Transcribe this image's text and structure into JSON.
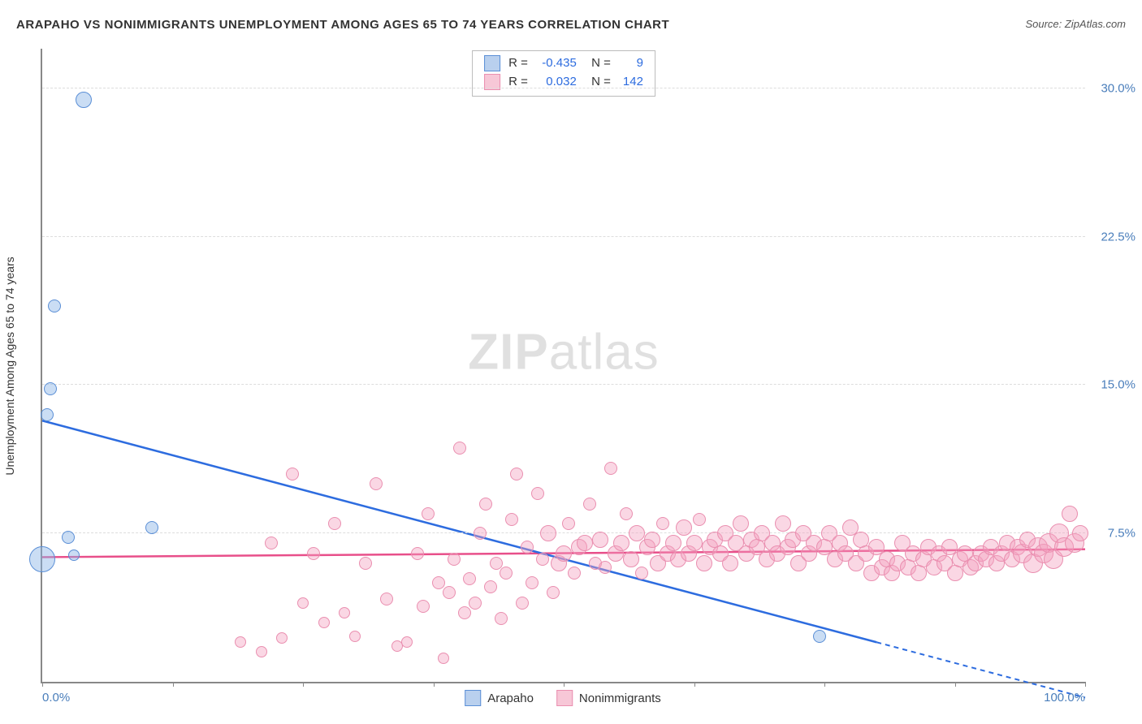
{
  "title": "ARAPAHO VS NONIMMIGRANTS UNEMPLOYMENT AMONG AGES 65 TO 74 YEARS CORRELATION CHART",
  "source": "Source: ZipAtlas.com",
  "watermark_bold": "ZIP",
  "watermark_rest": "atlas",
  "y_axis_title": "Unemployment Among Ages 65 to 74 years",
  "chart": {
    "type": "scatter",
    "xlim": [
      0,
      100
    ],
    "ylim": [
      0,
      32
    ],
    "x_ticks": [
      0,
      50,
      100
    ],
    "x_tick_labels": [
      "0.0%",
      "",
      "100.0%"
    ],
    "x_minor_ticks": [
      12.5,
      25,
      37.5,
      62.5,
      75,
      87.5
    ],
    "y_ticks": [
      7.5,
      15.0,
      22.5,
      30.0
    ],
    "y_tick_labels": [
      "7.5%",
      "15.0%",
      "22.5%",
      "30.0%"
    ],
    "grid_color": "#dddddd",
    "axis_color": "#888888",
    "background_color": "#ffffff"
  },
  "series": {
    "arapaho": {
      "label": "Arapaho",
      "fill": "rgba(138,180,230,0.45)",
      "stroke": "#5b8fd6",
      "swatch_fill": "#b9d0ee",
      "swatch_border": "#5b8fd6",
      "line_color": "#2d6cdf",
      "R": "-0.435",
      "N": "9",
      "trend": {
        "x1": 0,
        "y1": 13.2,
        "x2_solid": 80,
        "y2_solid": 2.0,
        "x2": 100,
        "y2": -0.8
      },
      "points": [
        {
          "x": 0.0,
          "y": 6.2,
          "r": 16
        },
        {
          "x": 0.5,
          "y": 13.5,
          "r": 8
        },
        {
          "x": 0.8,
          "y": 14.8,
          "r": 8
        },
        {
          "x": 1.2,
          "y": 19.0,
          "r": 8
        },
        {
          "x": 4.0,
          "y": 29.4,
          "r": 10
        },
        {
          "x": 2.5,
          "y": 7.3,
          "r": 8
        },
        {
          "x": 3.0,
          "y": 6.4,
          "r": 7
        },
        {
          "x": 10.5,
          "y": 7.8,
          "r": 8
        },
        {
          "x": 74.5,
          "y": 2.3,
          "r": 8
        }
      ]
    },
    "nonimmigrants": {
      "label": "Nonimmigrants",
      "fill": "rgba(244,160,190,0.42)",
      "stroke": "#ea8fb0",
      "swatch_fill": "#f7c7d7",
      "swatch_border": "#ea8fb0",
      "line_color": "#e84f8a",
      "R": "0.032",
      "N": "142",
      "trend": {
        "x1": 0,
        "y1": 6.3,
        "x2_solid": 100,
        "y2_solid": 6.7,
        "x2": 100,
        "y2": 6.7
      },
      "points": [
        {
          "x": 19,
          "y": 2.0,
          "r": 7
        },
        {
          "x": 21,
          "y": 1.5,
          "r": 7
        },
        {
          "x": 22,
          "y": 7.0,
          "r": 8
        },
        {
          "x": 23,
          "y": 2.2,
          "r": 7
        },
        {
          "x": 24,
          "y": 10.5,
          "r": 8
        },
        {
          "x": 25,
          "y": 4.0,
          "r": 7
        },
        {
          "x": 26,
          "y": 6.5,
          "r": 8
        },
        {
          "x": 27,
          "y": 3.0,
          "r": 7
        },
        {
          "x": 28,
          "y": 8.0,
          "r": 8
        },
        {
          "x": 29,
          "y": 3.5,
          "r": 7
        },
        {
          "x": 30,
          "y": 2.3,
          "r": 7
        },
        {
          "x": 31,
          "y": 6.0,
          "r": 8
        },
        {
          "x": 32,
          "y": 10.0,
          "r": 8
        },
        {
          "x": 33,
          "y": 4.2,
          "r": 8
        },
        {
          "x": 34,
          "y": 1.8,
          "r": 7
        },
        {
          "x": 35,
          "y": 2.0,
          "r": 7
        },
        {
          "x": 36,
          "y": 6.5,
          "r": 8
        },
        {
          "x": 36.5,
          "y": 3.8,
          "r": 8
        },
        {
          "x": 37,
          "y": 8.5,
          "r": 8
        },
        {
          "x": 38,
          "y": 5.0,
          "r": 8
        },
        {
          "x": 38.5,
          "y": 1.2,
          "r": 7
        },
        {
          "x": 39,
          "y": 4.5,
          "r": 8
        },
        {
          "x": 39.5,
          "y": 6.2,
          "r": 8
        },
        {
          "x": 40,
          "y": 11.8,
          "r": 8
        },
        {
          "x": 40.5,
          "y": 3.5,
          "r": 8
        },
        {
          "x": 41,
          "y": 5.2,
          "r": 8
        },
        {
          "x": 41.5,
          "y": 4.0,
          "r": 8
        },
        {
          "x": 42,
          "y": 7.5,
          "r": 8
        },
        {
          "x": 42.5,
          "y": 9.0,
          "r": 8
        },
        {
          "x": 43,
          "y": 4.8,
          "r": 8
        },
        {
          "x": 43.5,
          "y": 6.0,
          "r": 8
        },
        {
          "x": 44,
          "y": 3.2,
          "r": 8
        },
        {
          "x": 44.5,
          "y": 5.5,
          "r": 8
        },
        {
          "x": 45,
          "y": 8.2,
          "r": 8
        },
        {
          "x": 45.5,
          "y": 10.5,
          "r": 8
        },
        {
          "x": 46,
          "y": 4.0,
          "r": 8
        },
        {
          "x": 46.5,
          "y": 6.8,
          "r": 8
        },
        {
          "x": 47,
          "y": 5.0,
          "r": 8
        },
        {
          "x": 47.5,
          "y": 9.5,
          "r": 8
        },
        {
          "x": 48,
          "y": 6.2,
          "r": 8
        },
        {
          "x": 48.5,
          "y": 7.5,
          "r": 10
        },
        {
          "x": 49,
          "y": 4.5,
          "r": 8
        },
        {
          "x": 49.5,
          "y": 6.0,
          "r": 10
        },
        {
          "x": 50,
          "y": 6.5,
          "r": 10
        },
        {
          "x": 50.5,
          "y": 8.0,
          "r": 8
        },
        {
          "x": 51,
          "y": 5.5,
          "r": 8
        },
        {
          "x": 51.5,
          "y": 6.8,
          "r": 10
        },
        {
          "x": 52,
          "y": 7.0,
          "r": 10
        },
        {
          "x": 52.5,
          "y": 9.0,
          "r": 8
        },
        {
          "x": 53,
          "y": 6.0,
          "r": 8
        },
        {
          "x": 53.5,
          "y": 7.2,
          "r": 10
        },
        {
          "x": 54,
          "y": 5.8,
          "r": 8
        },
        {
          "x": 54.5,
          "y": 10.8,
          "r": 8
        },
        {
          "x": 55,
          "y": 6.5,
          "r": 10
        },
        {
          "x": 55.5,
          "y": 7.0,
          "r": 10
        },
        {
          "x": 56,
          "y": 8.5,
          "r": 8
        },
        {
          "x": 56.5,
          "y": 6.2,
          "r": 10
        },
        {
          "x": 57,
          "y": 7.5,
          "r": 10
        },
        {
          "x": 57.5,
          "y": 5.5,
          "r": 8
        },
        {
          "x": 58,
          "y": 6.8,
          "r": 10
        },
        {
          "x": 58.5,
          "y": 7.2,
          "r": 10
        },
        {
          "x": 59,
          "y": 6.0,
          "r": 10
        },
        {
          "x": 59.5,
          "y": 8.0,
          "r": 8
        },
        {
          "x": 60,
          "y": 6.5,
          "r": 10
        },
        {
          "x": 60.5,
          "y": 7.0,
          "r": 10
        },
        {
          "x": 61,
          "y": 6.2,
          "r": 10
        },
        {
          "x": 61.5,
          "y": 7.8,
          "r": 10
        },
        {
          "x": 62,
          "y": 6.5,
          "r": 10
        },
        {
          "x": 62.5,
          "y": 7.0,
          "r": 10
        },
        {
          "x": 63,
          "y": 8.2,
          "r": 8
        },
        {
          "x": 63.5,
          "y": 6.0,
          "r": 10
        },
        {
          "x": 64,
          "y": 6.8,
          "r": 10
        },
        {
          "x": 64.5,
          "y": 7.2,
          "r": 10
        },
        {
          "x": 65,
          "y": 6.5,
          "r": 10
        },
        {
          "x": 65.5,
          "y": 7.5,
          "r": 10
        },
        {
          "x": 66,
          "y": 6.0,
          "r": 10
        },
        {
          "x": 66.5,
          "y": 7.0,
          "r": 10
        },
        {
          "x": 67,
          "y": 8.0,
          "r": 10
        },
        {
          "x": 67.5,
          "y": 6.5,
          "r": 10
        },
        {
          "x": 68,
          "y": 7.2,
          "r": 10
        },
        {
          "x": 68.5,
          "y": 6.8,
          "r": 10
        },
        {
          "x": 69,
          "y": 7.5,
          "r": 10
        },
        {
          "x": 69.5,
          "y": 6.2,
          "r": 10
        },
        {
          "x": 70,
          "y": 7.0,
          "r": 10
        },
        {
          "x": 70.5,
          "y": 6.5,
          "r": 10
        },
        {
          "x": 71,
          "y": 8.0,
          "r": 10
        },
        {
          "x": 71.5,
          "y": 6.8,
          "r": 10
        },
        {
          "x": 72,
          "y": 7.2,
          "r": 10
        },
        {
          "x": 72.5,
          "y": 6.0,
          "r": 10
        },
        {
          "x": 73,
          "y": 7.5,
          "r": 10
        },
        {
          "x": 73.5,
          "y": 6.5,
          "r": 10
        },
        {
          "x": 74,
          "y": 7.0,
          "r": 10
        },
        {
          "x": 75,
          "y": 6.8,
          "r": 10
        },
        {
          "x": 75.5,
          "y": 7.5,
          "r": 10
        },
        {
          "x": 76,
          "y": 6.2,
          "r": 10
        },
        {
          "x": 76.5,
          "y": 7.0,
          "r": 10
        },
        {
          "x": 77,
          "y": 6.5,
          "r": 10
        },
        {
          "x": 77.5,
          "y": 7.8,
          "r": 10
        },
        {
          "x": 78,
          "y": 6.0,
          "r": 10
        },
        {
          "x": 78.5,
          "y": 7.2,
          "r": 10
        },
        {
          "x": 79,
          "y": 6.5,
          "r": 10
        },
        {
          "x": 79.5,
          "y": 5.5,
          "r": 10
        },
        {
          "x": 80,
          "y": 6.8,
          "r": 10
        },
        {
          "x": 80.5,
          "y": 5.8,
          "r": 10
        },
        {
          "x": 81,
          "y": 6.2,
          "r": 10
        },
        {
          "x": 81.5,
          "y": 5.5,
          "r": 10
        },
        {
          "x": 82,
          "y": 6.0,
          "r": 10
        },
        {
          "x": 82.5,
          "y": 7.0,
          "r": 10
        },
        {
          "x": 83,
          "y": 5.8,
          "r": 10
        },
        {
          "x": 83.5,
          "y": 6.5,
          "r": 10
        },
        {
          "x": 84,
          "y": 5.5,
          "r": 10
        },
        {
          "x": 84.5,
          "y": 6.2,
          "r": 10
        },
        {
          "x": 85,
          "y": 6.8,
          "r": 10
        },
        {
          "x": 85.5,
          "y": 5.8,
          "r": 10
        },
        {
          "x": 86,
          "y": 6.5,
          "r": 10
        },
        {
          "x": 86.5,
          "y": 6.0,
          "r": 10
        },
        {
          "x": 87,
          "y": 6.8,
          "r": 10
        },
        {
          "x": 87.5,
          "y": 5.5,
          "r": 10
        },
        {
          "x": 88,
          "y": 6.2,
          "r": 10
        },
        {
          "x": 88.5,
          "y": 6.5,
          "r": 10
        },
        {
          "x": 89,
          "y": 5.8,
          "r": 10
        },
        {
          "x": 89.5,
          "y": 6.0,
          "r": 10
        },
        {
          "x": 90,
          "y": 6.5,
          "r": 10
        },
        {
          "x": 90.5,
          "y": 6.2,
          "r": 10
        },
        {
          "x": 91,
          "y": 6.8,
          "r": 10
        },
        {
          "x": 91.5,
          "y": 6.0,
          "r": 10
        },
        {
          "x": 92,
          "y": 6.5,
          "r": 10
        },
        {
          "x": 92.5,
          "y": 7.0,
          "r": 10
        },
        {
          "x": 93,
          "y": 6.2,
          "r": 10
        },
        {
          "x": 93.5,
          "y": 6.8,
          "r": 10
        },
        {
          "x": 94,
          "y": 6.5,
          "r": 12
        },
        {
          "x": 94.5,
          "y": 7.2,
          "r": 10
        },
        {
          "x": 95,
          "y": 6.0,
          "r": 12
        },
        {
          "x": 95.5,
          "y": 6.8,
          "r": 12
        },
        {
          "x": 96,
          "y": 6.5,
          "r": 12
        },
        {
          "x": 96.5,
          "y": 7.0,
          "r": 12
        },
        {
          "x": 97,
          "y": 6.2,
          "r": 12
        },
        {
          "x": 97.5,
          "y": 7.5,
          "r": 12
        },
        {
          "x": 98,
          "y": 6.8,
          "r": 12
        },
        {
          "x": 98.5,
          "y": 8.5,
          "r": 10
        },
        {
          "x": 99,
          "y": 7.0,
          "r": 12
        },
        {
          "x": 99.5,
          "y": 7.5,
          "r": 10
        }
      ]
    }
  }
}
